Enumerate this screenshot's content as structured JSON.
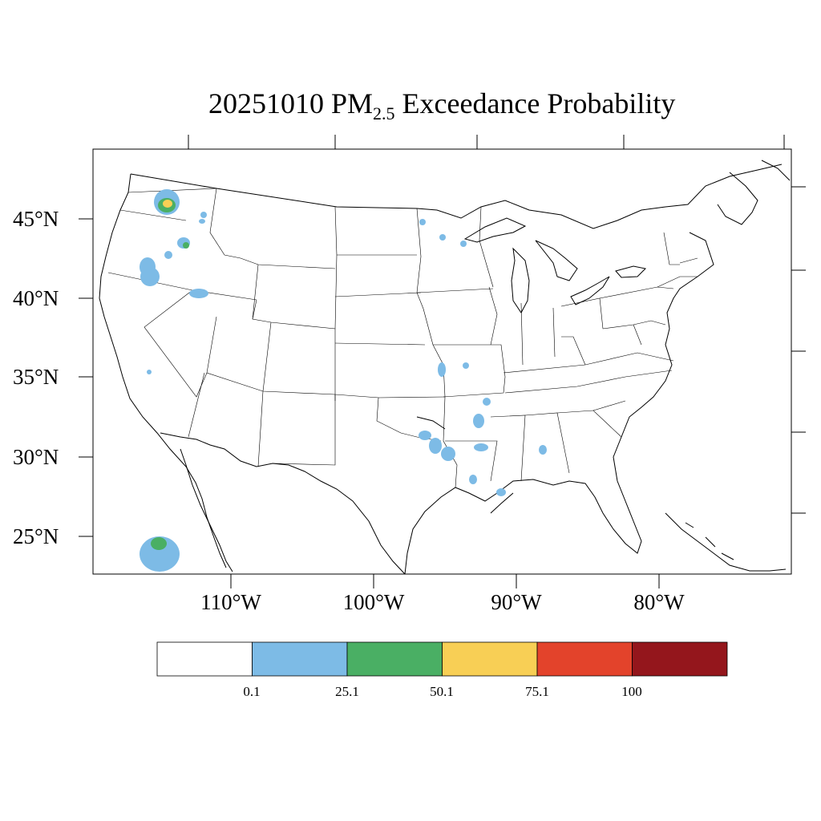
{
  "title": {
    "date": "20251010",
    "pm": "PM",
    "pm_subscript": "2.5",
    "rest": "Exceedance Probability"
  },
  "lat_labels": [
    "45°N",
    "40°N",
    "35°N",
    "30°N",
    "25°N"
  ],
  "lon_labels": [
    "110°W",
    "100°W",
    "90°W",
    "80°W"
  ],
  "colorbar": {
    "labels": [
      "0.1",
      "25.1",
      "50.1",
      "75.1",
      "100"
    ],
    "colors": [
      "#ffffff",
      "#7dbbe6",
      "#4aaf64",
      "#f8cf55",
      "#e3432b",
      "#94161c"
    ]
  },
  "legend_colors": {
    "low": "#7dbbe6",
    "mid": "#4aaf64",
    "high": "#f8cf55",
    "outline": "#000000"
  }
}
